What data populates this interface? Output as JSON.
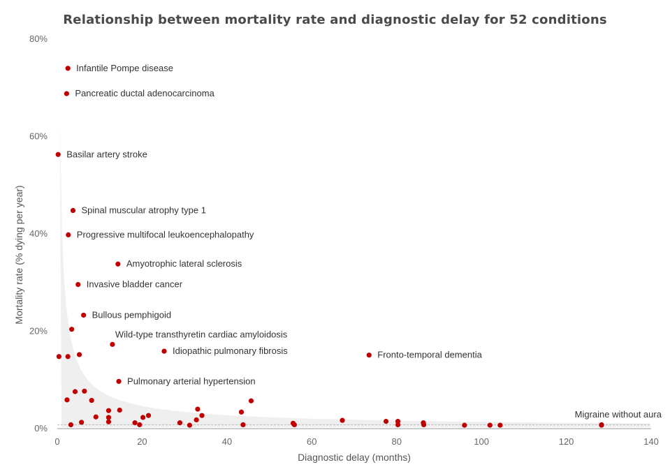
{
  "chart_data": {
    "type": "scatter",
    "title": "Relationship between mortality rate and diagnostic delay for 52 conditions",
    "xlabel": "Diagnostic delay (months)",
    "ylabel": "Mortality rate (% dying per year)",
    "xlim": [
      0,
      140
    ],
    "ylim": [
      0,
      80
    ],
    "xticks": [
      0,
      20,
      40,
      60,
      80,
      100,
      120,
      140
    ],
    "yticks": [
      0,
      20,
      40,
      60,
      80
    ],
    "ytick_suffix": "%",
    "grid": false,
    "point_color": "#c00000",
    "band_color": "#efefef",
    "reference_line_y": 0.8,
    "points": [
      {
        "x": 2.5,
        "y": 74.0,
        "label": "Infantile Pompe disease"
      },
      {
        "x": 2.2,
        "y": 68.8,
        "label": "Pancreatic ductal adenocarcinoma"
      },
      {
        "x": 0.2,
        "y": 56.3,
        "label": "Basilar artery stroke"
      },
      {
        "x": 3.7,
        "y": 44.8,
        "label": "Spinal muscular atrophy type 1"
      },
      {
        "x": 2.6,
        "y": 39.8,
        "label": "Progressive multifocal leukoencephalopathy"
      },
      {
        "x": 14.3,
        "y": 33.8,
        "label": "Amyotrophic lateral sclerosis"
      },
      {
        "x": 4.9,
        "y": 29.6,
        "label": "Invasive bladder cancer"
      },
      {
        "x": 6.2,
        "y": 23.3,
        "label": "Bullous pemphigoid"
      },
      {
        "x": 13.0,
        "y": 17.3,
        "label": "Wild-type transthyretin cardiac amyloidosis"
      },
      {
        "x": 25.2,
        "y": 15.9,
        "label": "Idiopathic pulmonary fibrosis"
      },
      {
        "x": 73.5,
        "y": 15.1,
        "label": "Fronto-temporal dementia"
      },
      {
        "x": 14.5,
        "y": 9.7,
        "label": "Pulmonary arterial hypertension"
      },
      {
        "x": 128.3,
        "y": 0.7,
        "label": "Migraine without aura"
      },
      {
        "x": 3.4,
        "y": 20.4
      },
      {
        "x": 0.4,
        "y": 14.8
      },
      {
        "x": 2.5,
        "y": 14.8
      },
      {
        "x": 5.2,
        "y": 15.2
      },
      {
        "x": 2.3,
        "y": 5.9
      },
      {
        "x": 4.2,
        "y": 7.6
      },
      {
        "x": 6.4,
        "y": 7.7
      },
      {
        "x": 8.1,
        "y": 5.8
      },
      {
        "x": 3.2,
        "y": 0.8
      },
      {
        "x": 5.7,
        "y": 1.3
      },
      {
        "x": 9.1,
        "y": 2.4
      },
      {
        "x": 12.1,
        "y": 3.7
      },
      {
        "x": 14.7,
        "y": 3.8
      },
      {
        "x": 12.1,
        "y": 2.3
      },
      {
        "x": 12.1,
        "y": 1.4
      },
      {
        "x": 18.3,
        "y": 1.2
      },
      {
        "x": 19.4,
        "y": 0.8
      },
      {
        "x": 20.2,
        "y": 2.3
      },
      {
        "x": 21.5,
        "y": 2.7
      },
      {
        "x": 28.9,
        "y": 1.2
      },
      {
        "x": 31.2,
        "y": 0.7
      },
      {
        "x": 32.8,
        "y": 1.8
      },
      {
        "x": 33.1,
        "y": 4.0
      },
      {
        "x": 34.1,
        "y": 2.7
      },
      {
        "x": 43.4,
        "y": 3.4
      },
      {
        "x": 43.8,
        "y": 0.8
      },
      {
        "x": 45.7,
        "y": 5.7
      },
      {
        "x": 55.6,
        "y": 1.1
      },
      {
        "x": 55.9,
        "y": 0.8
      },
      {
        "x": 67.2,
        "y": 1.7
      },
      {
        "x": 77.5,
        "y": 1.5
      },
      {
        "x": 80.3,
        "y": 1.5
      },
      {
        "x": 80.3,
        "y": 0.8
      },
      {
        "x": 86.3,
        "y": 1.2
      },
      {
        "x": 86.4,
        "y": 0.8
      },
      {
        "x": 96.0,
        "y": 0.7
      },
      {
        "x": 102.0,
        "y": 0.7
      },
      {
        "x": 104.4,
        "y": 0.7
      },
      {
        "x": 128.3,
        "y": 0.8
      }
    ]
  }
}
